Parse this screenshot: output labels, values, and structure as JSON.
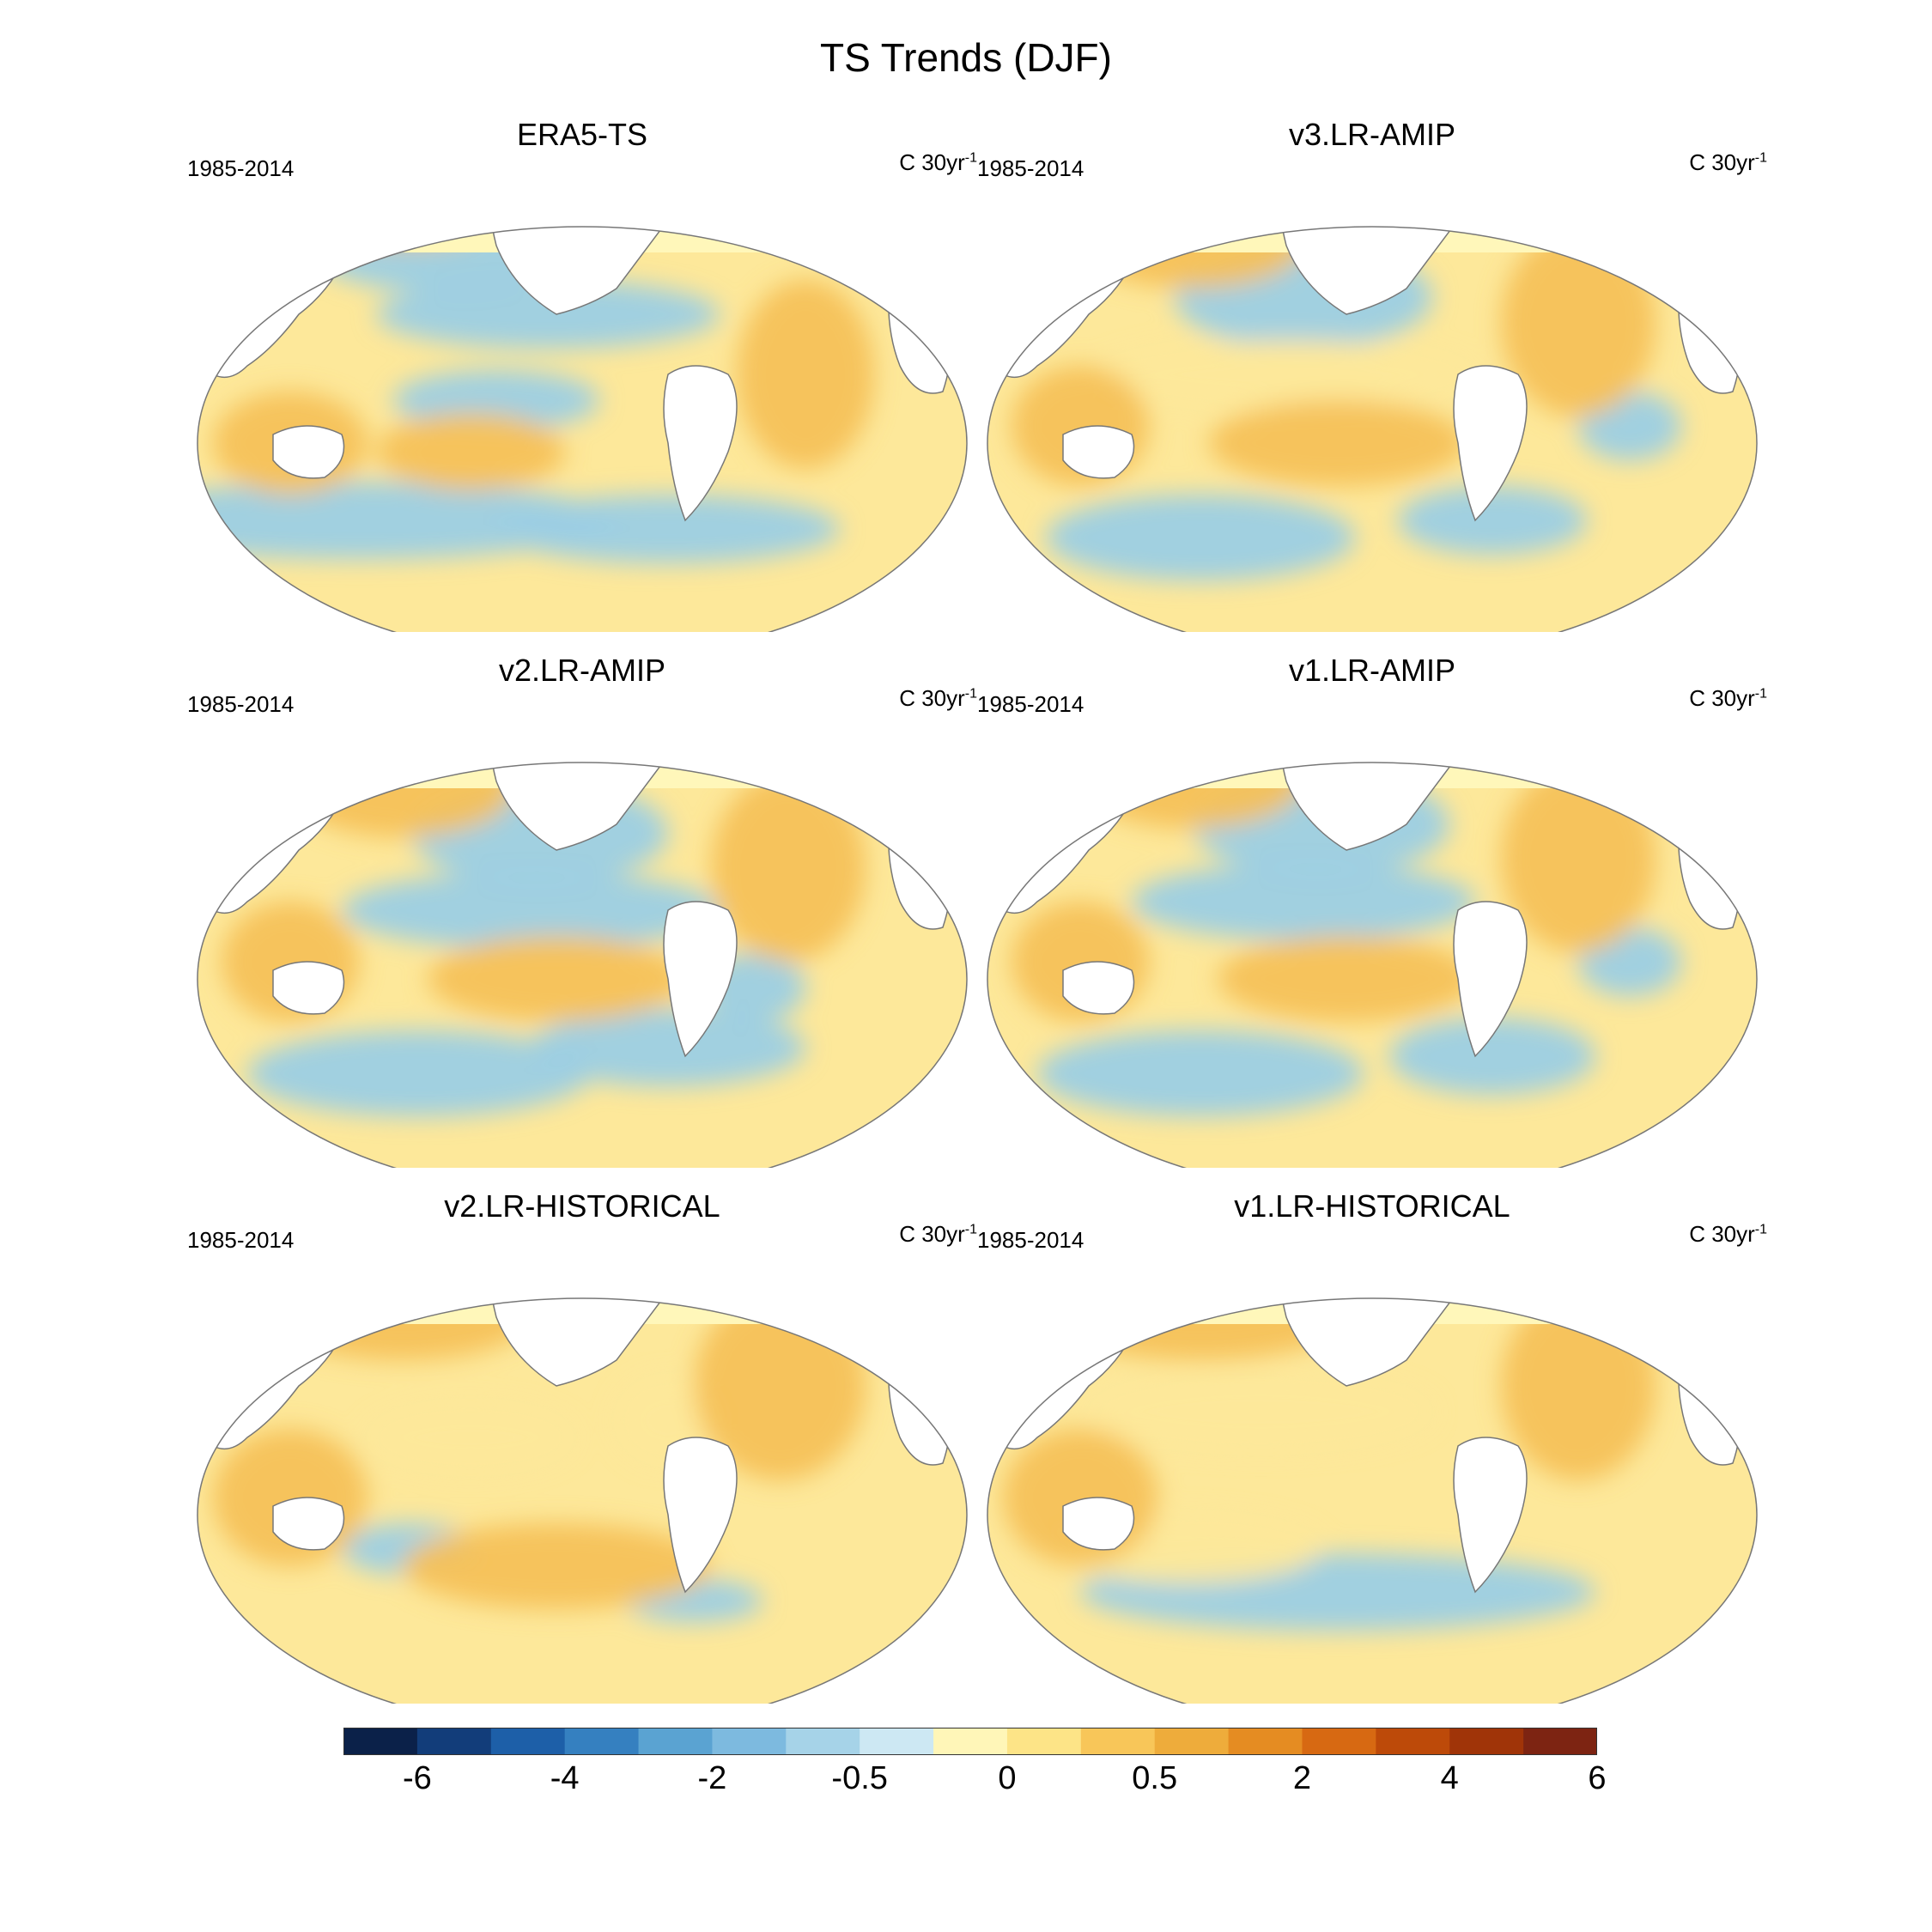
{
  "figure": {
    "title": "TS Trends (DJF)"
  },
  "panels": [
    {
      "title": "ERA5-TS",
      "period": "1985-2014",
      "units": "C 30yr",
      "units_exp": "-1"
    },
    {
      "title": "v3.LR-AMIP",
      "period": "1985-2014",
      "units": "C 30yr",
      "units_exp": "-1"
    },
    {
      "title": "v2.LR-AMIP",
      "period": "1985-2014",
      "units": "C 30yr",
      "units_exp": "-1"
    },
    {
      "title": "v1.LR-AMIP",
      "period": "1985-2014",
      "units": "C 30yr",
      "units_exp": "-1"
    },
    {
      "title": "v2.LR-HISTORICAL",
      "period": "1985-2014",
      "units": "C 30yr",
      "units_exp": "-1"
    },
    {
      "title": "v1.LR-HISTORICAL",
      "period": "1985-2014",
      "units": "C 30yr",
      "units_exp": "-1"
    }
  ],
  "colorbar": {
    "colors": [
      "#0b2149",
      "#123d7a",
      "#1d5fa8",
      "#3580c0",
      "#5aa3d2",
      "#7dbadf",
      "#a6d3e8",
      "#cde8f3",
      "#fff6b8",
      "#fde487",
      "#f8c659",
      "#eeac3b",
      "#e58c22",
      "#d76912",
      "#bd4a09",
      "#a03408",
      "#7d2412"
    ],
    "tick_labels": [
      "-6",
      "-4",
      "-2",
      "-0.5",
      "0",
      "0.5",
      "2",
      "4",
      "6"
    ]
  },
  "colors": {
    "ocean_warm": "#f5c15a",
    "ocean_light_warm": "#fde89a",
    "ocean_cool": "#9ccfe4",
    "ocean_cold": "#6fb0d6",
    "arctic": "#fff7ba",
    "land": "#ffffff",
    "coast": "#777777"
  }
}
